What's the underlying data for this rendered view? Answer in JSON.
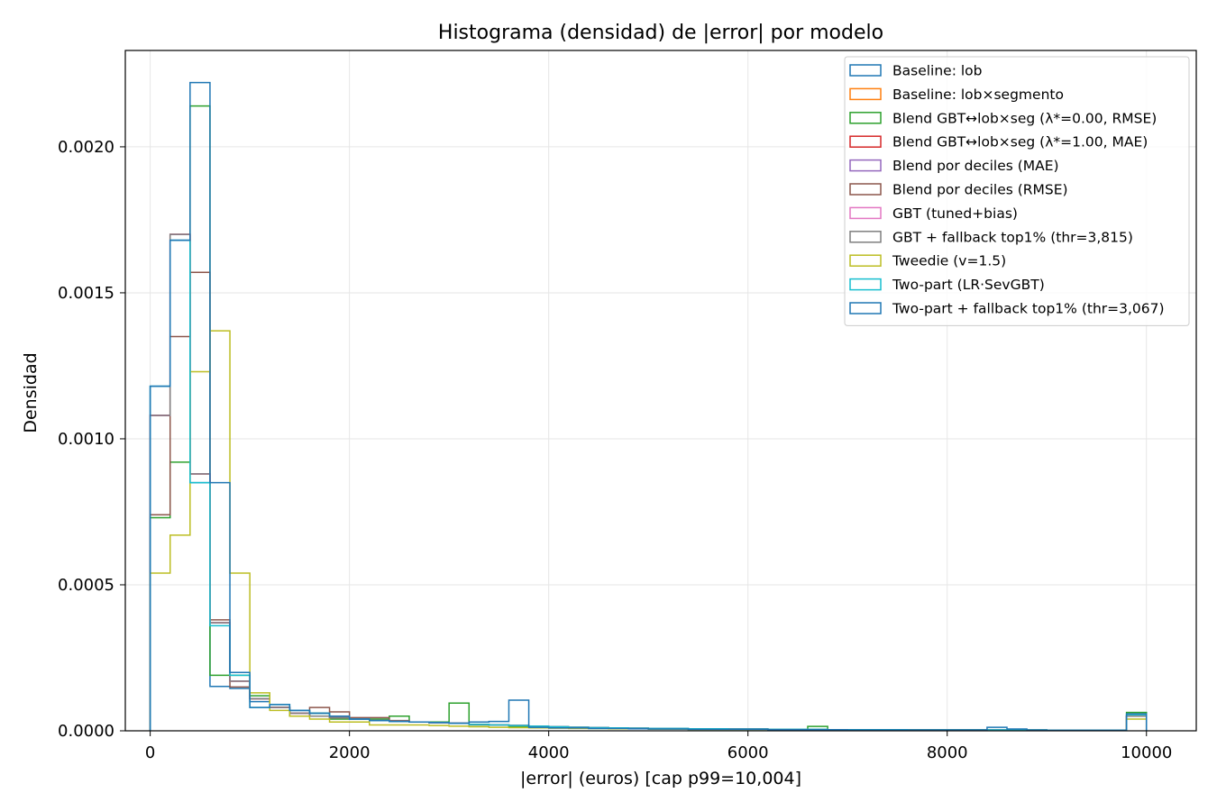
{
  "chart_data": {
    "type": "histogram",
    "histtype": "step",
    "title": "Histograma (densidad) de |error| por modelo",
    "xlabel": "|error| (euros)  [cap p99=10,004]",
    "ylabel": "Densidad",
    "xlim": [
      -250,
      10500
    ],
    "ylim": [
      0,
      0.00233
    ],
    "xticks": [
      0,
      2000,
      4000,
      6000,
      8000,
      10000
    ],
    "xtick_labels": [
      "0",
      "2000",
      "4000",
      "6000",
      "8000",
      "10000"
    ],
    "yticks": [
      0,
      0.0005,
      0.001,
      0.0015,
      0.002
    ],
    "ytick_labels": [
      "0.0000",
      "0.0005",
      "0.0010",
      "0.0015",
      "0.0020"
    ],
    "grid": true,
    "legend_position": "top-right",
    "bin_edges": [
      0,
      200,
      400,
      600,
      800,
      1000,
      1200,
      1400,
      1600,
      1800,
      2000,
      2200,
      2400,
      2600,
      2800,
      3000,
      3200,
      3400,
      3600,
      3800,
      4000,
      4200,
      4400,
      4600,
      4800,
      5000,
      5200,
      5400,
      5600,
      5800,
      6000,
      6200,
      6400,
      6600,
      6800,
      7000,
      7200,
      7400,
      7600,
      7800,
      8000,
      8200,
      8400,
      8600,
      8800,
      9000,
      9200,
      9400,
      9600,
      9800,
      10000
    ],
    "series": [
      {
        "name": "Baseline: lob",
        "color": "#1f77b4",
        "values": [
          0.00118,
          0.00168,
          0.00085,
          0.000152,
          0.000145,
          0.0001,
          8e-05,
          7e-05,
          6e-05,
          5e-05,
          4e-05,
          3.5e-05,
          3.2e-05,
          3e-05,
          2.8e-05,
          2.6e-05,
          2.2e-05,
          2e-05,
          1.8e-05,
          1.6e-05,
          1.4e-05,
          1.2e-05,
          1.1e-05,
          1e-05,
          9e-06,
          8e-06,
          8e-06,
          7e-06,
          7e-06,
          6e-06,
          6e-06,
          5e-06,
          5e-06,
          5e-06,
          4e-06,
          4e-06,
          4e-06,
          4e-06,
          3e-06,
          3e-06,
          3e-06,
          3e-06,
          3e-06,
          3e-06,
          3e-06,
          2e-06,
          2e-06,
          2e-06,
          2e-06,
          5e-05
        ]
      },
      {
        "name": "Baseline: lob×segmento",
        "color": "#ff7f0e",
        "values": [
          0.00108,
          0.0017,
          0.00088,
          0.00037,
          0.00017,
          0.00011,
          8e-05,
          6e-05,
          5e-05,
          4.5e-05,
          4e-05,
          3.5e-05,
          3.2e-05,
          3e-05,
          2.8e-05,
          2.6e-05,
          2.2e-05,
          2e-05,
          1.8e-05,
          1.6e-05,
          1.4e-05,
          1.2e-05,
          1.1e-05,
          1e-05,
          9e-06,
          8e-06,
          8e-06,
          7e-06,
          7e-06,
          6e-06,
          6e-06,
          5e-06,
          5e-06,
          5e-06,
          4e-06,
          4e-06,
          4e-06,
          4e-06,
          3e-06,
          3e-06,
          3e-06,
          3e-06,
          3e-06,
          3e-06,
          3e-06,
          2e-06,
          2e-06,
          2e-06,
          2e-06,
          5e-05
        ]
      },
      {
        "name": "Blend GBT↔lob×seg (λ*=0.00, RMSE)",
        "color": "#2ca02c",
        "values": [
          0.00073,
          0.00092,
          0.00214,
          0.00019,
          0.00019,
          0.00012,
          8e-05,
          5e-05,
          6e-05,
          4e-05,
          4e-05,
          4e-05,
          5e-05,
          3e-05,
          3e-05,
          9.5e-05,
          2e-05,
          2e-05,
          1.5e-05,
          1.2e-05,
          1e-05,
          1e-05,
          8e-06,
          8e-06,
          7e-06,
          6e-06,
          6e-06,
          5e-06,
          5e-06,
          5e-06,
          5e-06,
          4e-06,
          4e-06,
          1.5e-05,
          4e-06,
          3e-06,
          3e-06,
          3e-06,
          3e-06,
          3e-06,
          3e-06,
          3e-06,
          3e-06,
          3e-06,
          2e-06,
          2e-06,
          2e-06,
          2e-06,
          2e-06,
          6.3e-05
        ]
      },
      {
        "name": "Blend GBT↔lob×seg (λ*=1.00, MAE)",
        "color": "#d62728",
        "values": [
          0.00108,
          0.0017,
          0.00088,
          0.00037,
          0.00017,
          0.00011,
          8e-05,
          6e-05,
          5e-05,
          4.5e-05,
          4e-05,
          3.5e-05,
          3.2e-05,
          3e-05,
          2.8e-05,
          2.6e-05,
          2.2e-05,
          2e-05,
          1.8e-05,
          1.6e-05,
          1.4e-05,
          1.2e-05,
          1.1e-05,
          1e-05,
          9e-06,
          8e-06,
          8e-06,
          7e-06,
          7e-06,
          6e-06,
          6e-06,
          5e-06,
          5e-06,
          5e-06,
          4e-06,
          4e-06,
          4e-06,
          4e-06,
          3e-06,
          3e-06,
          3e-06,
          3e-06,
          3e-06,
          3e-06,
          3e-06,
          2e-06,
          2e-06,
          2e-06,
          2e-06,
          5e-05
        ]
      },
      {
        "name": "Blend por deciles (MAE)",
        "color": "#9467bd",
        "values": [
          0.00108,
          0.0017,
          0.00088,
          0.00037,
          0.00017,
          0.00011,
          8e-05,
          6e-05,
          5e-05,
          4.5e-05,
          4e-05,
          3.5e-05,
          3.2e-05,
          3e-05,
          2.8e-05,
          2.6e-05,
          2.2e-05,
          2e-05,
          1.8e-05,
          1.6e-05,
          1.4e-05,
          1.2e-05,
          1.1e-05,
          1e-05,
          9e-06,
          8e-06,
          8e-06,
          7e-06,
          7e-06,
          6e-06,
          6e-06,
          5e-06,
          5e-06,
          5e-06,
          4e-06,
          4e-06,
          4e-06,
          4e-06,
          3e-06,
          3e-06,
          3e-06,
          3e-06,
          3e-06,
          3e-06,
          3e-06,
          2e-06,
          2e-06,
          2e-06,
          2e-06,
          5e-05
        ]
      },
      {
        "name": "Blend por deciles (RMSE)",
        "color": "#8c564b",
        "values": [
          0.00074,
          0.00135,
          0.00157,
          0.00038,
          0.00015,
          0.00011,
          8e-05,
          6e-05,
          8e-05,
          6.5e-05,
          4.5e-05,
          4.5e-05,
          3.5e-05,
          3e-05,
          2.8e-05,
          2.6e-05,
          2.2e-05,
          2e-05,
          1.8e-05,
          1.6e-05,
          1.4e-05,
          1.2e-05,
          1.1e-05,
          1e-05,
          9e-06,
          8e-06,
          8e-06,
          7e-06,
          7e-06,
          6e-06,
          6e-06,
          5e-06,
          5e-06,
          5e-06,
          4e-06,
          4e-06,
          4e-06,
          4e-06,
          3e-06,
          3e-06,
          3e-06,
          3e-06,
          3e-06,
          3e-06,
          3e-06,
          2e-06,
          2e-06,
          2e-06,
          2e-06,
          5e-05
        ]
      },
      {
        "name": "GBT (tuned+bias)",
        "color": "#e377c2",
        "values": [
          0.00108,
          0.0017,
          0.00088,
          0.00037,
          0.00017,
          0.00011,
          8e-05,
          6e-05,
          5e-05,
          4.5e-05,
          4e-05,
          3.5e-05,
          3.2e-05,
          3e-05,
          2.8e-05,
          2.6e-05,
          2.2e-05,
          2e-05,
          1.8e-05,
          1.6e-05,
          1.4e-05,
          1.2e-05,
          1.1e-05,
          1e-05,
          9e-06,
          8e-06,
          8e-06,
          7e-06,
          7e-06,
          6e-06,
          6e-06,
          5e-06,
          5e-06,
          5e-06,
          4e-06,
          4e-06,
          4e-06,
          4e-06,
          3e-06,
          3e-06,
          3e-06,
          3e-06,
          3e-06,
          3e-06,
          3e-06,
          2e-06,
          2e-06,
          2e-06,
          2e-06,
          5e-05
        ]
      },
      {
        "name": "GBT + fallback top1% (thr=3,815)",
        "color": "#7f7f7f",
        "values": [
          0.00108,
          0.0017,
          0.00088,
          0.00037,
          0.00017,
          0.00011,
          8e-05,
          6e-05,
          5e-05,
          4.5e-05,
          4e-05,
          3.5e-05,
          3.2e-05,
          3e-05,
          2.8e-05,
          2.6e-05,
          2.2e-05,
          2e-05,
          1.8e-05,
          1.6e-05,
          1.4e-05,
          1.2e-05,
          1.1e-05,
          1e-05,
          9e-06,
          8e-06,
          8e-06,
          7e-06,
          7e-06,
          6e-06,
          6e-06,
          5e-06,
          5e-06,
          5e-06,
          4e-06,
          4e-06,
          4e-06,
          4e-06,
          3e-06,
          3e-06,
          3e-06,
          3e-06,
          3e-06,
          3e-06,
          3e-06,
          2e-06,
          2e-06,
          2e-06,
          2e-06,
          5e-05
        ]
      },
      {
        "name": "Tweedie (v=1.5)",
        "color": "#bcbd22",
        "values": [
          0.00054,
          0.00067,
          0.00123,
          0.00137,
          0.00054,
          0.00013,
          7e-05,
          5e-05,
          4e-05,
          3e-05,
          3e-05,
          2e-05,
          2e-05,
          2e-05,
          1.8e-05,
          1.6e-05,
          1.4e-05,
          1.2e-05,
          1.1e-05,
          1e-05,
          9e-06,
          8e-06,
          8e-06,
          7e-06,
          7e-06,
          6e-06,
          6e-06,
          5e-06,
          5e-06,
          5e-06,
          5e-06,
          4e-06,
          4e-06,
          4e-06,
          4e-06,
          3e-06,
          3e-06,
          3e-06,
          3e-06,
          3e-06,
          3e-06,
          3e-06,
          2e-06,
          2e-06,
          2e-06,
          2e-06,
          2e-06,
          2e-06,
          2e-06,
          4e-05
        ]
      },
      {
        "name": "Two-part (LR·SevGBT)",
        "color": "#17becf",
        "values": [
          0.00118,
          0.00168,
          0.00085,
          0.00036,
          0.00019,
          8e-05,
          9e-05,
          7e-05,
          6e-05,
          5e-05,
          4e-05,
          3.5e-05,
          3.2e-05,
          3e-05,
          2.8e-05,
          2.6e-05,
          2.2e-05,
          2e-05,
          1.8e-05,
          1.6e-05,
          1.4e-05,
          1.2e-05,
          1.1e-05,
          1e-05,
          9e-06,
          8e-06,
          8e-06,
          7e-06,
          7e-06,
          6e-06,
          6e-06,
          5e-06,
          5e-06,
          5e-06,
          4e-06,
          4e-06,
          4e-06,
          4e-06,
          3e-06,
          3e-06,
          3e-06,
          3e-06,
          3e-06,
          3e-06,
          3e-06,
          2e-06,
          2e-06,
          2e-06,
          2e-06,
          5.5e-05
        ]
      },
      {
        "name": "Two-part + fallback top1% (thr=3,067)",
        "color": "#1f77b4",
        "values": [
          0.00118,
          0.00168,
          0.00222,
          0.00085,
          0.0002,
          8e-05,
          9e-05,
          7e-05,
          6e-05,
          5e-05,
          4e-05,
          3.5e-05,
          3.2e-05,
          3e-05,
          2.8e-05,
          2.6e-05,
          3e-05,
          3.2e-05,
          0.000105,
          1.2e-05,
          1e-05,
          1e-05,
          8e-06,
          8e-06,
          7e-06,
          6e-06,
          6e-06,
          5e-06,
          5e-06,
          5e-06,
          5e-06,
          4e-06,
          4e-06,
          4e-06,
          4e-06,
          3e-06,
          3e-06,
          3e-06,
          3e-06,
          3e-06,
          3e-06,
          3e-06,
          1.2e-05,
          6e-06,
          2e-06,
          2e-06,
          2e-06,
          2e-06,
          2e-06,
          5.8e-05
        ]
      }
    ]
  }
}
